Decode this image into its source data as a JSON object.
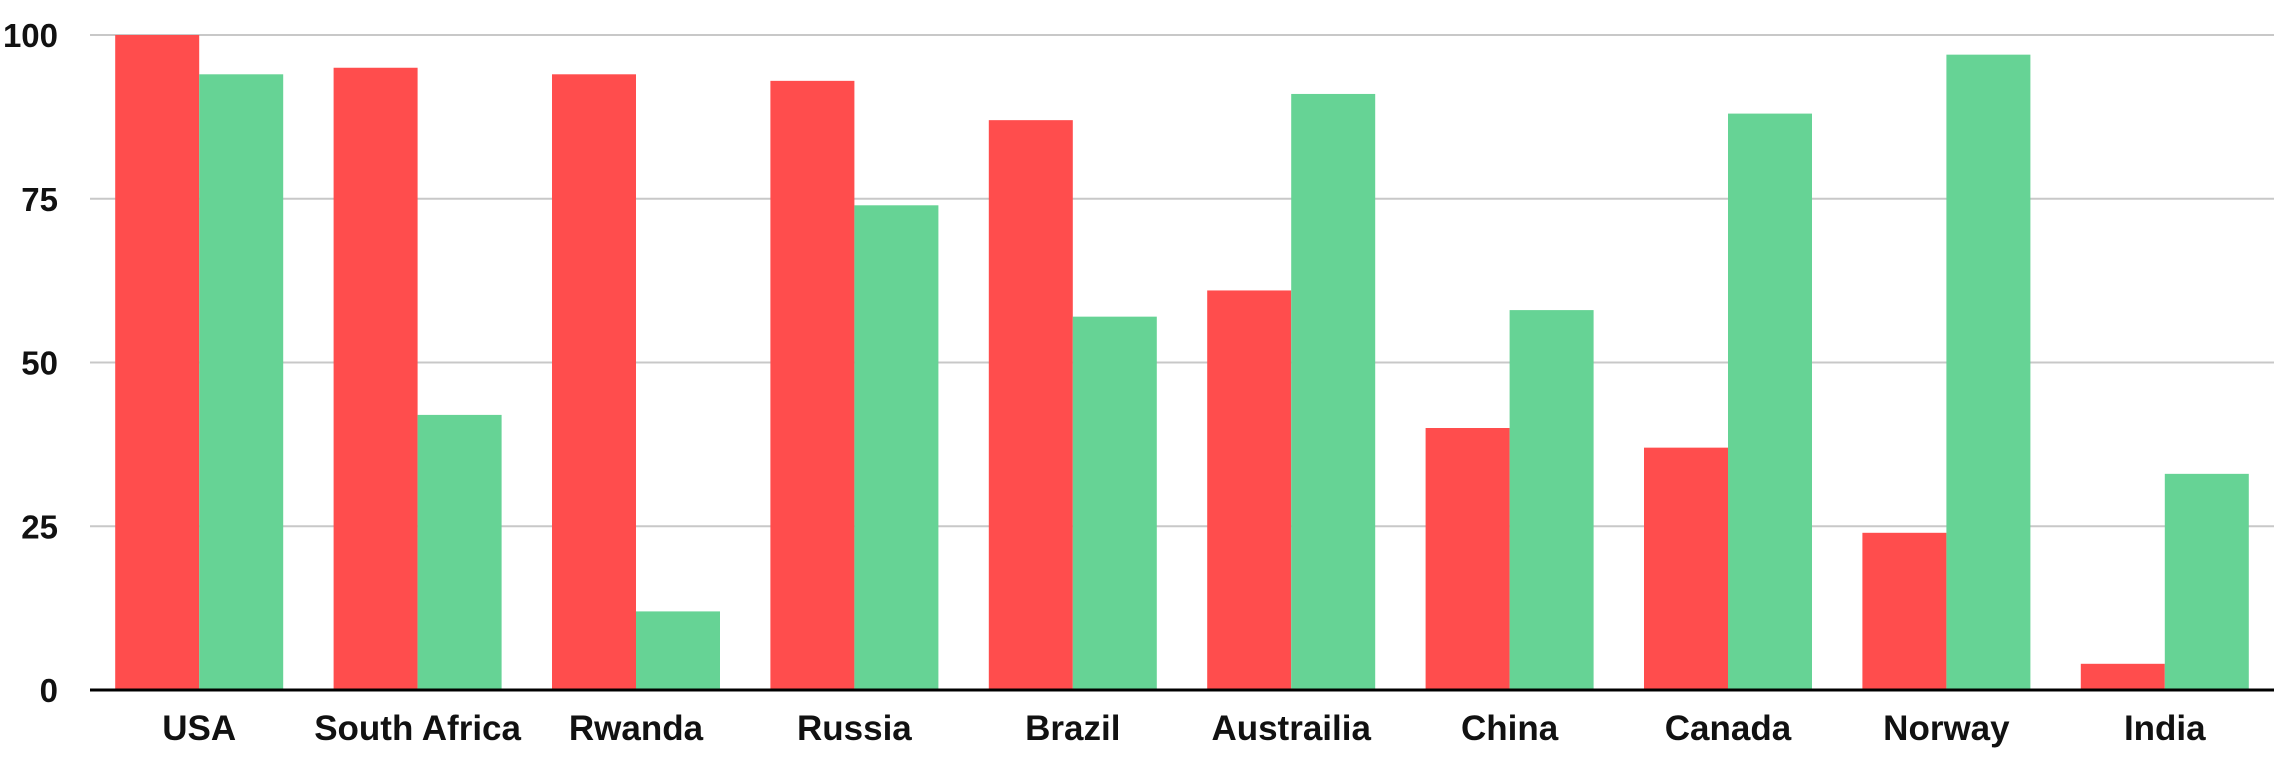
{
  "chart_data": {
    "type": "bar",
    "categories": [
      "USA",
      "South Africa",
      "Rwanda",
      "Russia",
      "Brazil",
      "Austrailia",
      "China",
      "Canada",
      "Norway",
      "India"
    ],
    "series": [
      {
        "values": [
          100,
          95,
          94,
          93,
          87,
          61,
          40,
          37,
          24,
          4
        ],
        "color": "#ff4d4d"
      },
      {
        "values": [
          94,
          42,
          12,
          74,
          57,
          91,
          58,
          88,
          97,
          33
        ],
        "color": "#66d395"
      }
    ],
    "ylim": [
      0,
      100
    ],
    "yticks": [
      "0",
      "25",
      "50",
      "75",
      "100"
    ],
    "grid": true,
    "gridline_color": "#c8c8c8",
    "axis_color": "#000000"
  }
}
